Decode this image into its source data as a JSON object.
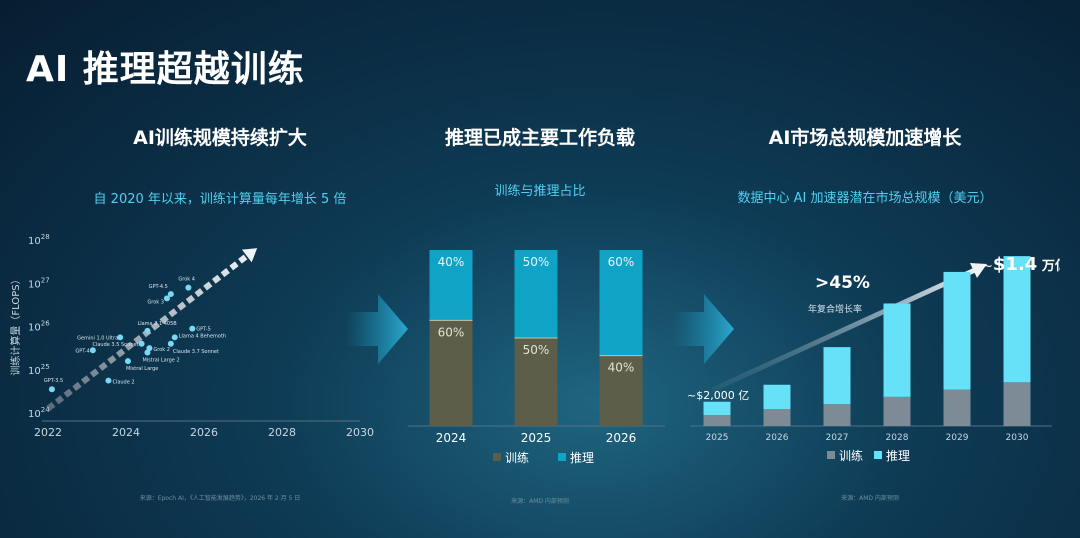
{
  "page": {
    "title": "AI 推理超越训练"
  },
  "panels": {
    "left": {
      "title": "AI训练规模持续扩大",
      "subtitle": "自 2020 年以来，训练计算量每年增长 5 倍",
      "source": "来源：Epoch AI，《人工智能发展趋势》，2026 年 2 月 5 日"
    },
    "middle": {
      "title": "推理已成主要工作负载",
      "subtitle": "训练与推理占比",
      "source": "来源：AMD 内部预测"
    },
    "right": {
      "title": "AI市场总规模加速增长",
      "subtitle": "数据中心 AI 加速器潜在市场总规模（美元）",
      "source": "来源：AMD 内部预测"
    }
  },
  "colors": {
    "cyan": "#4fd0ef",
    "train_mid": "#5c5e4a",
    "infer_mid": "#0fa3c6",
    "train_right": "#7d8b97",
    "infer_right": "#66e1f7",
    "scatter": "#7ad8f2"
  },
  "chart_data": [
    {
      "type": "scatter",
      "ylabel": "训练计算量（FLOPS）",
      "xlim": [
        2022,
        2030
      ],
      "x_ticks": [
        "2022",
        "2024",
        "2026",
        "2028",
        "2030"
      ],
      "y_scale": "log",
      "ylim_exp": [
        24,
        28
      ],
      "y_tick_base": "10",
      "y_tick_exps": [
        "24",
        "25",
        "26",
        "27",
        "28"
      ],
      "points": [
        {
          "label": "GPT-3.5",
          "x": 2022.1,
          "y_exp": 24.55
        },
        {
          "label": "GPT-4",
          "x": 2023.15,
          "y_exp": 25.45
        },
        {
          "label": "Gemini 1.0 Ultra",
          "x": 2023.85,
          "y_exp": 25.75
        },
        {
          "label": "Claude 2",
          "x": 2023.55,
          "y_exp": 24.75
        },
        {
          "label": "Claude 3.5 Sonnet",
          "x": 2024.4,
          "y_exp": 25.6
        },
        {
          "label": "Llama 3.1 405B",
          "x": 2024.55,
          "y_exp": 25.9
        },
        {
          "label": "Grok 2",
          "x": 2024.6,
          "y_exp": 25.5
        },
        {
          "label": "Mistral Large 2",
          "x": 2024.55,
          "y_exp": 25.4
        },
        {
          "label": "Mistral Large",
          "x": 2024.05,
          "y_exp": 25.2
        },
        {
          "label": "GPT-4.5",
          "x": 2025.15,
          "y_exp": 26.75
        },
        {
          "label": "Grok 3",
          "x": 2025.05,
          "y_exp": 26.65
        },
        {
          "label": "Grok 4",
          "x": 2025.6,
          "y_exp": 26.9
        },
        {
          "label": "Llama 4 Behemoth",
          "x": 2025.25,
          "y_exp": 25.75
        },
        {
          "label": "Claude 3.7 Sonnet",
          "x": 2025.15,
          "y_exp": 25.6
        },
        {
          "label": "GPT-5",
          "x": 2025.7,
          "y_exp": 25.95
        }
      ]
    },
    {
      "type": "bar",
      "stacked": true,
      "categories": [
        "2024",
        "2025",
        "2026"
      ],
      "series": [
        {
          "name": "训练",
          "values": [
            60,
            50,
            40
          ],
          "labels": [
            "60%",
            "50%",
            "40%"
          ]
        },
        {
          "name": "推理",
          "values": [
            40,
            50,
            60
          ],
          "labels": [
            "40%",
            "50%",
            "60%"
          ]
        }
      ],
      "ylim": [
        0,
        100
      ]
    },
    {
      "type": "bar",
      "stacked": true,
      "categories": [
        "2025",
        "2026",
        "2027",
        "2028",
        "2029",
        "2030"
      ],
      "series": [
        {
          "name": "训练",
          "values": [
            0.09,
            0.14,
            0.18,
            0.24,
            0.3,
            0.36
          ]
        },
        {
          "name": "推理",
          "values": [
            0.11,
            0.2,
            0.47,
            0.77,
            0.97,
            1.04
          ]
        }
      ],
      "ylim": [
        0,
        1.5
      ],
      "annotations": {
        "start": "~$2,000 亿",
        "cagr": ">45%",
        "cagr_label": "年复合增长率",
        "end_prefix": "~",
        "end_value": "$1.4",
        "end_unit": "万亿"
      }
    }
  ]
}
